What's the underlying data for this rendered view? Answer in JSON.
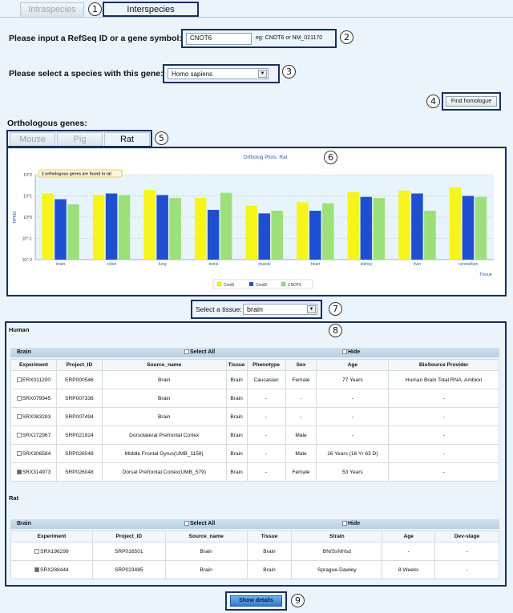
{
  "tabs": [
    {
      "label": "Intraspecies",
      "active": false
    },
    {
      "label": "Interspecies",
      "active": true
    }
  ],
  "callouts": [
    "1",
    "2",
    "3",
    "4",
    "5",
    "6",
    "7",
    "8",
    "9"
  ],
  "form": {
    "refseq_label": "Please input a RefSeq ID or a gene symbol:",
    "refseq_value": "CNOT6",
    "refseq_hint": "eg: CNOT6 or NM_021170",
    "species_label": "Please select a species with this gene:",
    "species_value": "Homo sapiens",
    "find_button": "Find homologue"
  },
  "orthologous": {
    "title": "Orthologous genes:",
    "tabs": [
      {
        "label": "Mouse",
        "active": false
      },
      {
        "label": "Pig",
        "active": false
      },
      {
        "label": "Rat",
        "active": true
      }
    ]
  },
  "chart_data": {
    "type": "bar",
    "title": "Ortholog Plots: Rat",
    "annotation": "2 orthologous genes are found in rat",
    "ylabel": "RPKM",
    "xlabel": "Tissue",
    "yscale": "log",
    "ylim": [
      0.01,
      100
    ],
    "yticks": [
      "10^2",
      "10^1",
      "10^0",
      "10^-1",
      "10^-2"
    ],
    "categories": [
      "brain",
      "colon",
      "lung",
      "testis",
      "muscle",
      "heart",
      "kidney",
      "liver",
      "cerebellum"
    ],
    "series": [
      {
        "name": "Cnot6",
        "color": "#f5f51c",
        "values": [
          13,
          11,
          19,
          8,
          3.5,
          5,
          15,
          18,
          26
        ]
      },
      {
        "name": "Cnot6l",
        "color": "#1f4fd1",
        "values": [
          7,
          13,
          11,
          2.2,
          1.5,
          2,
          9,
          13,
          10
        ]
      },
      {
        "name": "CNOT6",
        "color": "#9be07a",
        "values": [
          4,
          11,
          8,
          14,
          2,
          4.5,
          8,
          2,
          9
        ]
      }
    ]
  },
  "tissue": {
    "label": "Select a tissue:",
    "value": "brain"
  },
  "human": {
    "title": "Human",
    "bar_label": "Brain",
    "select_all": "Select All",
    "hide": "Hide",
    "columns": [
      "Experiment",
      "Project_ID",
      "Source_name",
      "Tissue",
      "Phenotype",
      "Sex",
      "Age",
      "BioSource Provider"
    ],
    "rows": [
      {
        "checked": false,
        "cells": [
          "ERX011200",
          "ERP000546",
          "Brain",
          "Brain",
          "Caucasian",
          "Female",
          "77 Years",
          "Human Brain Total RNA, Ambion"
        ]
      },
      {
        "checked": false,
        "cells": [
          "SRX079945",
          "SRP007338",
          "Brain",
          "Brain",
          "-",
          "-",
          "-",
          "-"
        ]
      },
      {
        "checked": false,
        "cells": [
          "SRX083283",
          "SRP007494",
          "Brain",
          "Brain",
          "-",
          "-",
          "-",
          "-"
        ]
      },
      {
        "checked": false,
        "cells": [
          "SRX272967",
          "SRP021924",
          "Dorsolateral Prefrontal Cortex",
          "Brain",
          "-",
          "Male",
          "-",
          "-"
        ]
      },
      {
        "checked": false,
        "cells": [
          "SRX306584",
          "SRP026048",
          "Middle Frontal Gyrus(UMB_1158)",
          "Brain",
          "-",
          "Male",
          "16 Years (16 Yr 63 D)",
          "-"
        ]
      },
      {
        "checked": true,
        "cells": [
          "SRX314973",
          "SRP026048",
          "Dorsal Prefrontal Cortex(UMB_579)",
          "Brain",
          "-",
          "Female",
          "53 Years",
          "-"
        ]
      }
    ]
  },
  "rat": {
    "title": "Rat",
    "bar_label": "Brain",
    "select_all": "Select All",
    "hide": "Hide",
    "columns": [
      "Experiment",
      "Project_ID",
      "Source_name",
      "Tissue",
      "Strain",
      "Age",
      "Dev-stage"
    ],
    "rows": [
      {
        "checked": false,
        "cells": [
          "SRX196299",
          "SRP016501",
          "Brain",
          "Brain",
          "BN/SsNHsd",
          "-",
          "-"
        ]
      },
      {
        "checked": true,
        "cells": [
          "SRX288444",
          "SRP023485",
          "Brain",
          "Brain",
          "Sprague-Dawley",
          "8 Weeks",
          "-"
        ]
      }
    ]
  },
  "show_details": "Show details"
}
